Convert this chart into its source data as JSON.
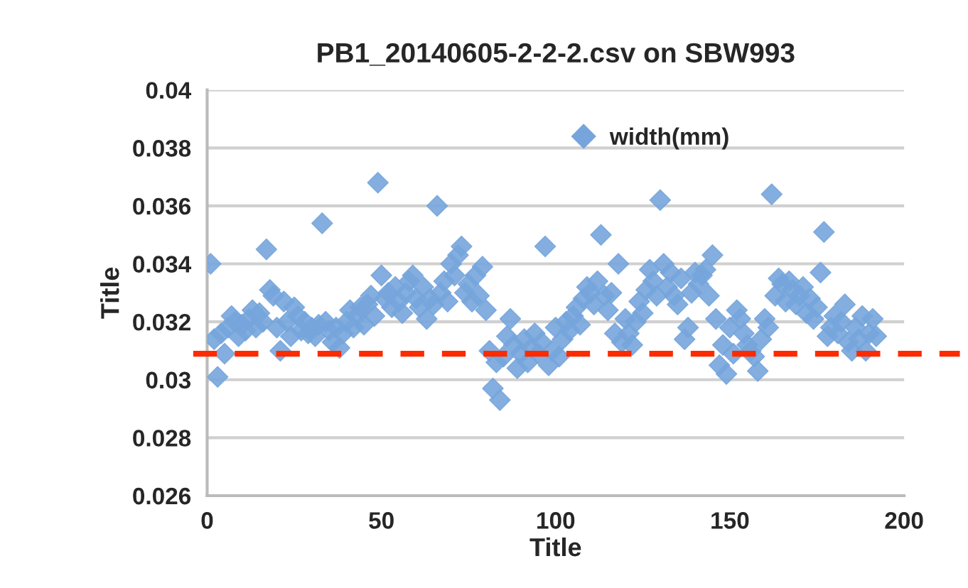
{
  "chart_data": {
    "type": "scatter",
    "title": "PB1_20140605-2-2-2.csv on SBW993",
    "xlabel": "Title",
    "ylabel": "Title",
    "xlim": [
      0,
      200
    ],
    "xticks": [
      0,
      50,
      100,
      150,
      200
    ],
    "ylim": [
      0.026,
      0.04
    ],
    "yticks": [
      0.026,
      0.028,
      0.03,
      0.032,
      0.034,
      0.036,
      0.038,
      0.04
    ],
    "grid": "y",
    "legend": "top right",
    "marker": "diamond",
    "ref_lines": [
      {
        "axis": "y",
        "value": 0.0309,
        "color": "#ff2a00",
        "line_style": "dashed"
      }
    ],
    "series": [
      {
        "name": "width(mm)",
        "color": "#76a5dc",
        "x": [
          1,
          2,
          3,
          4,
          5,
          6,
          7,
          8,
          9,
          10,
          11,
          12,
          13,
          14,
          15,
          16,
          17,
          18,
          19,
          20,
          21,
          22,
          23,
          24,
          25,
          26,
          27,
          28,
          29,
          30,
          31,
          32,
          33,
          34,
          35,
          36,
          37,
          38,
          39,
          40,
          41,
          42,
          43,
          44,
          45,
          46,
          47,
          48,
          49,
          50,
          51,
          52,
          53,
          54,
          55,
          56,
          57,
          58,
          59,
          60,
          61,
          62,
          63,
          64,
          65,
          66,
          67,
          68,
          69,
          70,
          71,
          72,
          73,
          74,
          75,
          76,
          77,
          78,
          79,
          80,
          81,
          82,
          83,
          84,
          85,
          86,
          87,
          88,
          89,
          90,
          91,
          92,
          93,
          94,
          95,
          96,
          97,
          98,
          99,
          100,
          101,
          102,
          103,
          104,
          105,
          106,
          107,
          108,
          109,
          110,
          111,
          112,
          113,
          114,
          115,
          116,
          117,
          118,
          119,
          120,
          121,
          122,
          123,
          124,
          125,
          126,
          127,
          128,
          129,
          130,
          131,
          132,
          133,
          134,
          135,
          136,
          137,
          138,
          139,
          140,
          141,
          142,
          143,
          144,
          145,
          146,
          147,
          148,
          149,
          150,
          151,
          152,
          153,
          154,
          155,
          156,
          157,
          158,
          159,
          160,
          161,
          162,
          163,
          164,
          165,
          166,
          167,
          168,
          169,
          170,
          171,
          172,
          173,
          174,
          175,
          176,
          177,
          178,
          179,
          180,
          181,
          182,
          183,
          184,
          185,
          186,
          187,
          188,
          189,
          190,
          191,
          192
        ],
        "values": [
          0.034,
          0.0314,
          0.0301,
          0.0316,
          0.0309,
          0.0318,
          0.0322,
          0.032,
          0.0315,
          0.0319,
          0.0317,
          0.0321,
          0.0324,
          0.0318,
          0.0323,
          0.032,
          0.0345,
          0.0331,
          0.0329,
          0.0318,
          0.031,
          0.0327,
          0.032,
          0.0315,
          0.0325,
          0.0322,
          0.0317,
          0.032,
          0.0316,
          0.0318,
          0.0315,
          0.0319,
          0.0354,
          0.032,
          0.0317,
          0.0313,
          0.0318,
          0.0311,
          0.0316,
          0.032,
          0.0324,
          0.0318,
          0.0322,
          0.0325,
          0.0319,
          0.0326,
          0.0329,
          0.0322,
          0.0368,
          0.0336,
          0.0328,
          0.033,
          0.0325,
          0.0332,
          0.0327,
          0.0323,
          0.033,
          0.0334,
          0.0336,
          0.0328,
          0.0325,
          0.0332,
          0.0321,
          0.0328,
          0.0326,
          0.036,
          0.033,
          0.0334,
          0.0327,
          0.034,
          0.0336,
          0.0343,
          0.0346,
          0.033,
          0.0333,
          0.0327,
          0.0336,
          0.0329,
          0.0339,
          0.0324,
          0.031,
          0.0297,
          0.0306,
          0.0293,
          0.0308,
          0.0315,
          0.0321,
          0.0312,
          0.0304,
          0.0309,
          0.0314,
          0.0306,
          0.0311,
          0.0316,
          0.0309,
          0.0313,
          0.0346,
          0.0305,
          0.031,
          0.0318,
          0.0308,
          0.0314,
          0.032,
          0.0317,
          0.0322,
          0.0325,
          0.0319,
          0.0328,
          0.0332,
          0.033,
          0.0326,
          0.0334,
          0.035,
          0.0329,
          0.0324,
          0.033,
          0.0316,
          0.034,
          0.0313,
          0.0321,
          0.0316,
          0.0312,
          0.032,
          0.0327,
          0.0323,
          0.0331,
          0.0338,
          0.0334,
          0.0329,
          0.0362,
          0.034,
          0.0332,
          0.0337,
          0.0329,
          0.0326,
          0.0335,
          0.0314,
          0.0318,
          0.033,
          0.0337,
          0.0333,
          0.0336,
          0.0338,
          0.0329,
          0.0343,
          0.0321,
          0.0305,
          0.0312,
          0.0302,
          0.0318,
          0.0309,
          0.0324,
          0.0321,
          0.0316,
          0.0312,
          0.031,
          0.0308,
          0.0303,
          0.0314,
          0.0321,
          0.0318,
          0.0364,
          0.0329,
          0.0335,
          0.0333,
          0.0327,
          0.0334,
          0.0331,
          0.0326,
          0.0329,
          0.0332,
          0.0323,
          0.0328,
          0.0321,
          0.0325,
          0.0337,
          0.0351,
          0.0315,
          0.0318,
          0.0322,
          0.0316,
          0.032,
          0.0326,
          0.0313,
          0.031,
          0.0318,
          0.0314,
          0.0322,
          0.031,
          0.0316,
          0.0321,
          0.0315
        ]
      }
    ]
  }
}
